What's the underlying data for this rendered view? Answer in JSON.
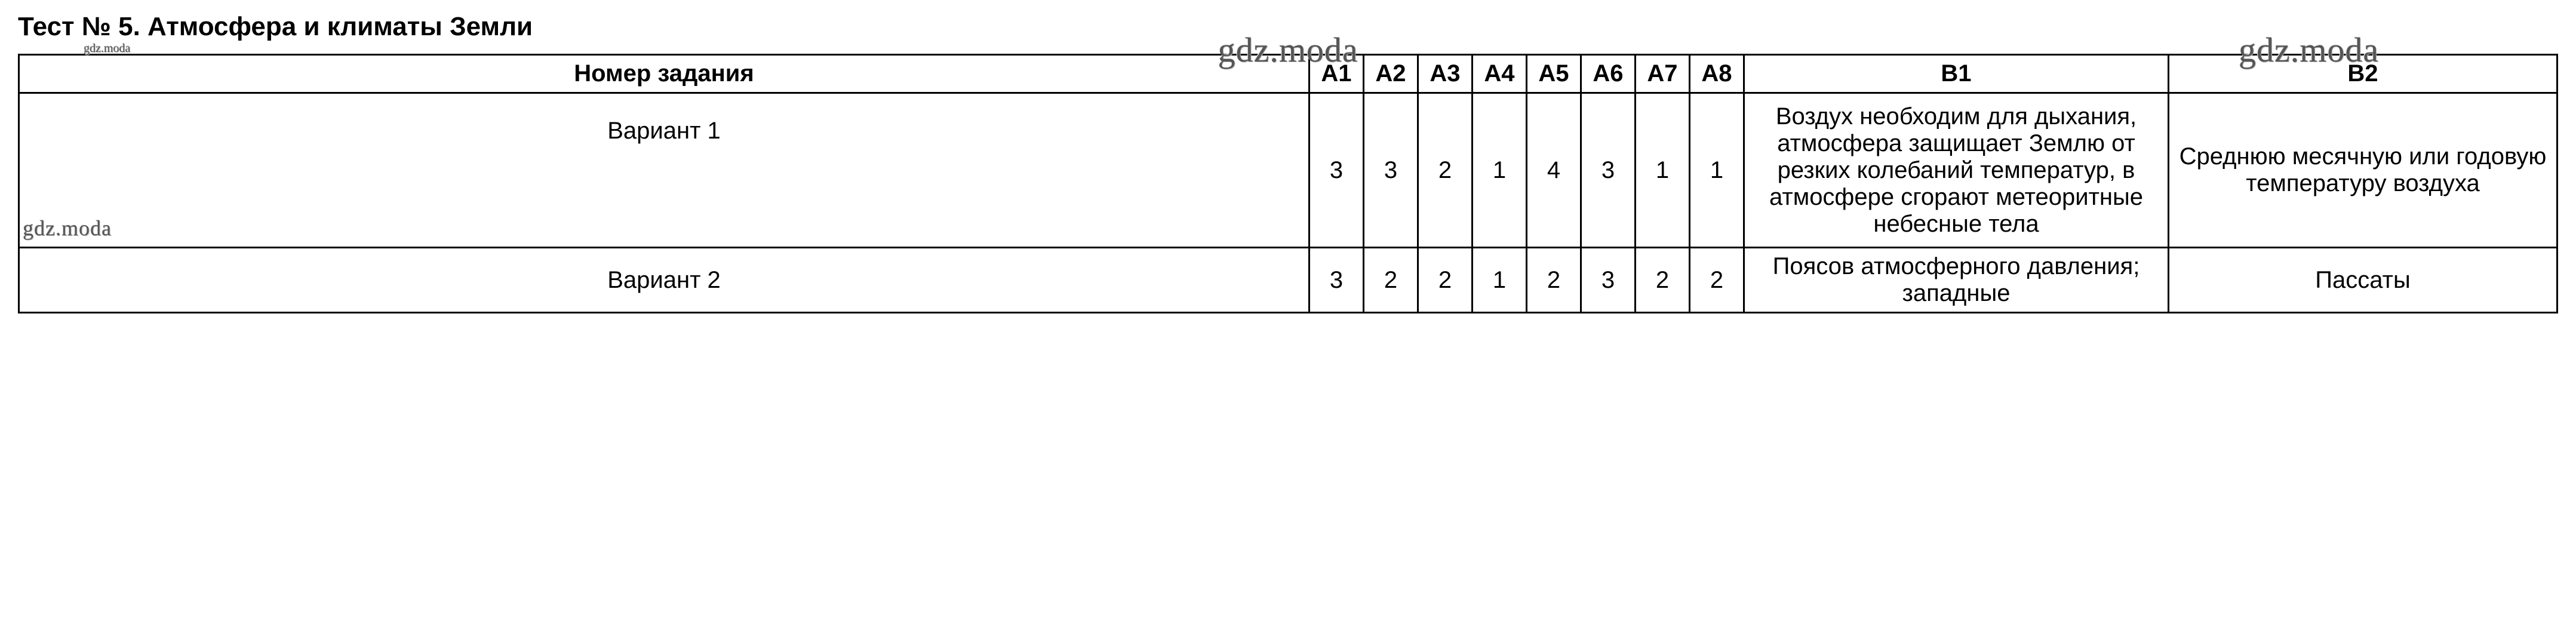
{
  "title": "Тест № 5. Атмосфера и климаты Земли",
  "watermark": "gdz.moda",
  "table": {
    "header": {
      "task_number": "Номер задания",
      "columns_a": [
        "А1",
        "А2",
        "А3",
        "А4",
        "А5",
        "А6",
        "А7",
        "А8"
      ],
      "columns_b": [
        "В1",
        "В2"
      ]
    },
    "rows": [
      {
        "variant": "Вариант 1",
        "has_watermark": true,
        "a_values": [
          "3",
          "3",
          "2",
          "1",
          "4",
          "3",
          "1",
          "1"
        ],
        "b1": "Воздух необходим для дыхания, атмосфера защищает Землю от резких колебаний температур, в атмосфере сгорают метеоритные небесные тела",
        "b2": "Среднюю месячную или годовую температуру воздуха"
      },
      {
        "variant": "Вариант 2",
        "has_watermark": false,
        "a_values": [
          "3",
          "2",
          "2",
          "1",
          "2",
          "3",
          "2",
          "2"
        ],
        "b1": "Поясов атмосферного давления; западные",
        "b2": "Пассаты"
      }
    ]
  },
  "style": {
    "title_fontsize": 44,
    "cell_fontsize": 40,
    "border_color": "#000000",
    "border_width": 3,
    "background_color": "#ffffff",
    "text_color": "#000000",
    "watermark_color": "#555555",
    "font_family": "Arial"
  }
}
